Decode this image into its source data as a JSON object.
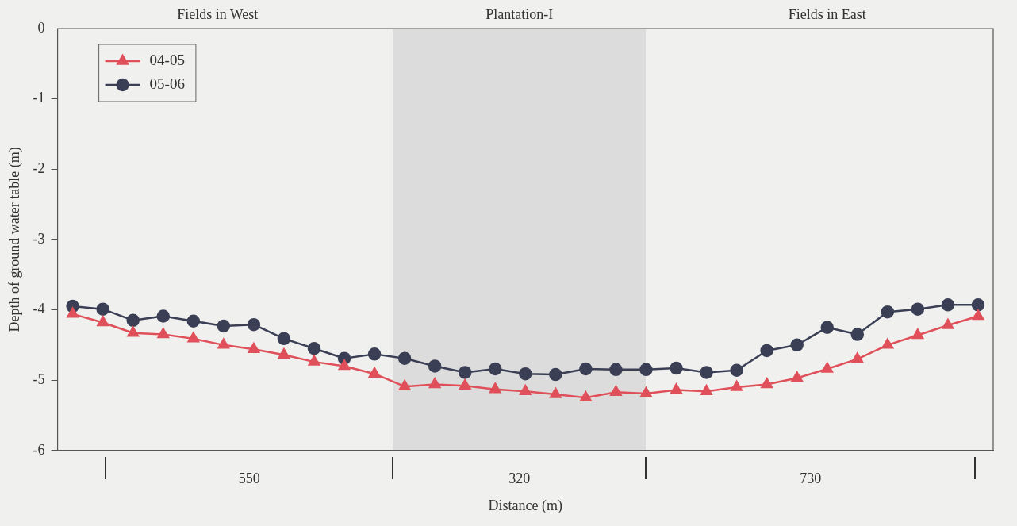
{
  "chart_data": {
    "type": "line",
    "xlabel": "Distance (m)",
    "ylabel": "Depth of ground water table (m)",
    "categories": [
      null,
      null,
      null,
      null,
      null,
      null,
      null,
      null,
      null,
      null,
      null,
      null,
      null,
      null,
      null,
      null,
      null,
      null,
      null,
      null,
      null,
      null,
      null,
      null,
      null,
      null,
      null,
      null,
      null,
      null,
      null
    ],
    "ylim": [
      -6,
      0
    ],
    "yticks": [
      0,
      -1,
      -2,
      -3,
      -4,
      -5,
      -6
    ],
    "series": [
      {
        "name": "04-05",
        "color": "#e0505a",
        "marker": "triangle",
        "values": [
          -4.06,
          -4.18,
          -4.33,
          -4.35,
          -4.41,
          -4.5,
          -4.56,
          -4.64,
          -4.74,
          -4.8,
          -4.91,
          -5.09,
          -5.06,
          -5.08,
          -5.13,
          -5.16,
          -5.2,
          -5.25,
          -5.17,
          -5.19,
          -5.14,
          -5.16,
          -5.1,
          -5.06,
          -4.97,
          -4.84,
          -4.7,
          -4.5,
          -4.36,
          -4.22,
          -4.09
        ]
      },
      {
        "name": "05-06",
        "color": "#3a3f55",
        "marker": "circle",
        "values": [
          -3.95,
          -3.99,
          -4.15,
          -4.09,
          -4.16,
          -4.23,
          -4.21,
          -4.41,
          -4.55,
          -4.69,
          -4.63,
          -4.69,
          -4.8,
          -4.89,
          -4.84,
          -4.91,
          -4.92,
          -4.84,
          -4.85,
          -4.85,
          -4.83,
          -4.89,
          -4.86,
          -4.58,
          -4.5,
          -4.25,
          -4.35,
          -4.03,
          -3.99,
          -3.93,
          -3.93
        ]
      }
    ],
    "annotations": [
      "Fields in West",
      "Plantation-I",
      "Fields in East",
      "550",
      "320",
      "730"
    ],
    "legend": "top left",
    "line_style": "solid"
  }
}
